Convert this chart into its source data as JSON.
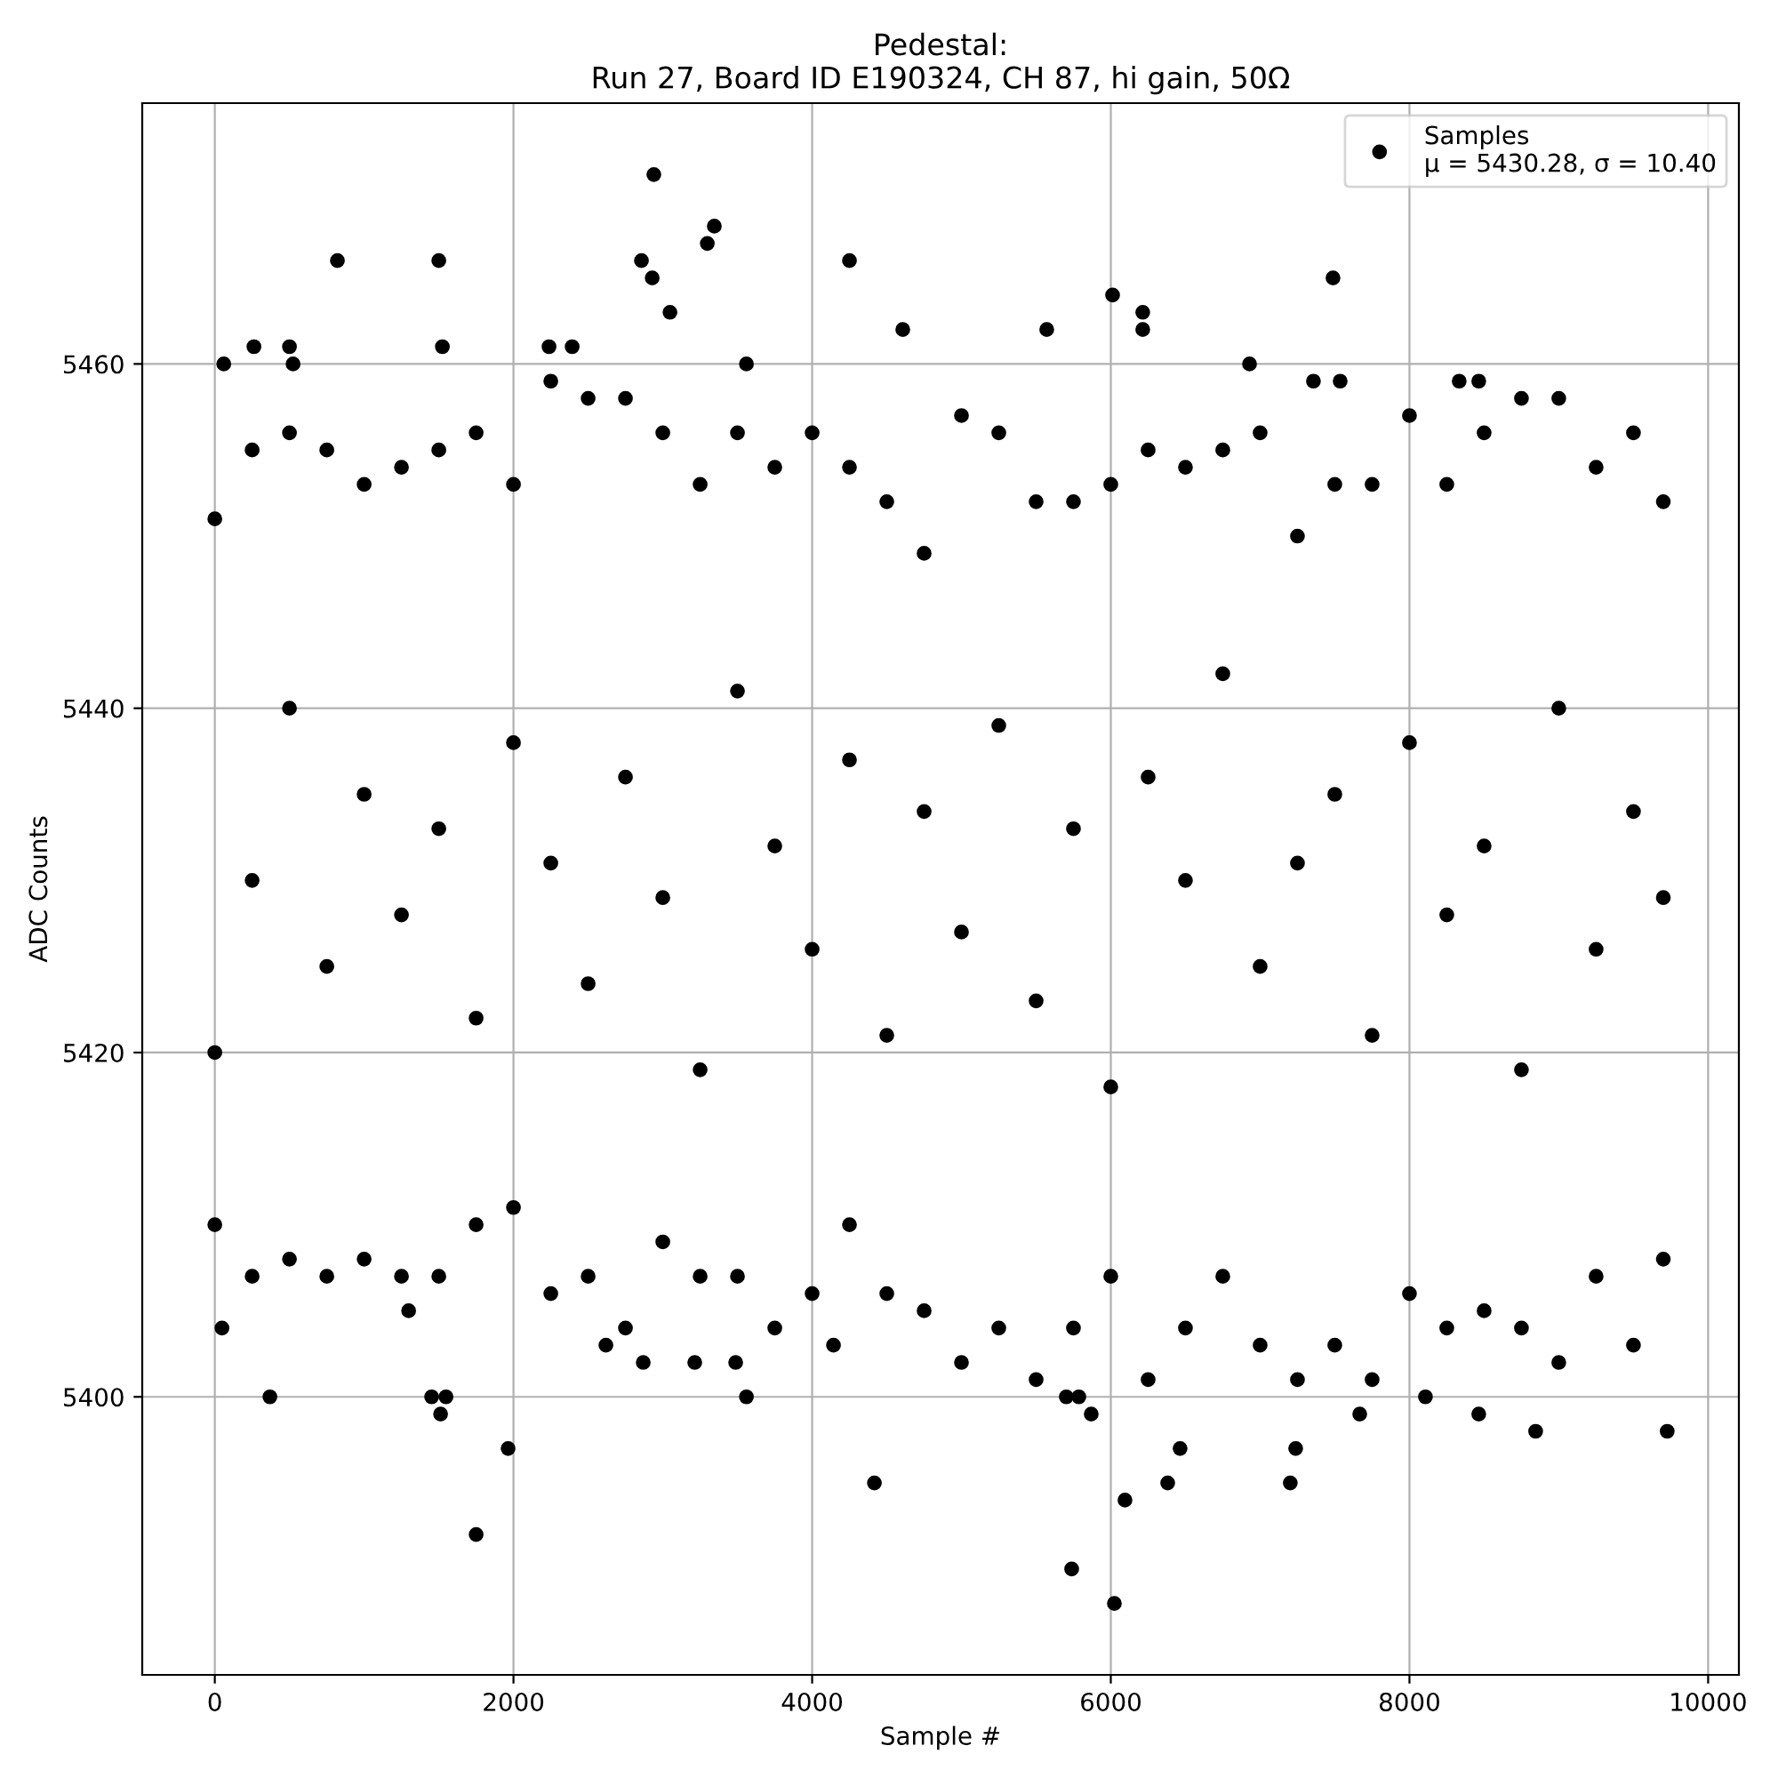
{
  "chart_data": {
    "type": "scatter",
    "title": "Pedestal:\nRun 27, Board ID E190324, CH 87, hi gain, 50Ω",
    "xlabel": "Sample #",
    "ylabel": "ADC Counts",
    "xlim": [
      -486,
      10206
    ],
    "ylim": [
      5383.85,
      5475.15
    ],
    "xticks": [
      0,
      2000,
      4000,
      6000,
      8000,
      10000
    ],
    "yticks": [
      5400,
      5420,
      5440,
      5460
    ],
    "grid": true,
    "legend": "top right",
    "marker": "circle",
    "series": [
      {
        "name": "Samples\nμ = 5430.28, σ = 10.40",
        "color": "#000000",
        "x": [
          0,
          250,
          500,
          750,
          1000,
          1250,
          1500,
          1750,
          2000,
          2250,
          2500,
          2750,
          3000,
          3250,
          3500,
          3750,
          4000,
          4250,
          4500,
          4750,
          5000,
          5250,
          5500,
          5750,
          6000,
          6250,
          6500,
          6750,
          7000,
          7250,
          7500,
          7750,
          8000,
          8250,
          8500,
          8750,
          9000,
          9250,
          9500,
          9700,
          0,
          250,
          500,
          750,
          1000,
          1250,
          1500,
          1750,
          2000,
          2250,
          2500,
          2750,
          3000,
          3250,
          3500,
          3750,
          4000,
          4250,
          4500,
          4750,
          5000,
          5250,
          5500,
          5750,
          6000,
          6250,
          6500,
          6750,
          7000,
          7250,
          7500,
          7750,
          8000,
          8250,
          8500,
          8750,
          9000,
          9250,
          9500,
          9700,
          0,
          250,
          500,
          750,
          1000,
          1250,
          1500,
          1750,
          2000,
          2250,
          2500,
          2750,
          3000,
          3250,
          3500,
          3750,
          4000,
          4250,
          4500,
          4750,
          5000,
          5250,
          5500,
          5750,
          6000,
          6250,
          6500,
          6750,
          7000,
          7250,
          7500,
          7750,
          8000,
          8250,
          8500,
          8750,
          9000,
          9250,
          9500,
          9700,
          2940,
          3345,
          3298,
          2857,
          2929,
          3048,
          821,
          1500,
          4250,
          4607,
          5571,
          6012,
          6214,
          6214,
          7488,
          6929,
          60,
          524,
          3560,
          262,
          500,
          1524,
          2238,
          2393,
          7357,
          7536,
          8333,
          8464,
          369,
          1452,
          1548,
          1512,
          1964,
          1750,
          3560,
          4417,
          48,
          1298,
          2619,
          2869,
          3214,
          3488,
          4143,
          5738,
          6024,
          6095,
          6381,
          6464,
          7202,
          7238,
          7667,
          8107,
          8464,
          8845,
          9726,
          5702,
          5786,
          5869
        ],
        "values": [
          5451,
          5455,
          5456,
          5455,
          5453,
          5454,
          5455,
          5456,
          5453,
          5459,
          5458,
          5458,
          5456,
          5453,
          5456,
          5454,
          5456,
          5454,
          5452,
          5449,
          5457,
          5456,
          5452,
          5452,
          5453,
          5455,
          5454,
          5455,
          5456,
          5450,
          5453,
          5453,
          5457,
          5453,
          5456,
          5458,
          5458,
          5454,
          5456,
          5452,
          5410,
          5407,
          5408,
          5407,
          5408,
          5407,
          5407,
          5410,
          5411,
          5406,
          5407,
          5404,
          5409,
          5407,
          5407,
          5404,
          5406,
          5410,
          5406,
          5405,
          5402,
          5404,
          5401,
          5404,
          5407,
          5401,
          5404,
          5407,
          5403,
          5401,
          5403,
          5401,
          5406,
          5404,
          5405,
          5404,
          5402,
          5407,
          5403,
          5408,
          5420,
          5430,
          5440,
          5425,
          5435,
          5428,
          5433,
          5422,
          5438,
          5431,
          5424,
          5436,
          5429,
          5419,
          5441,
          5432,
          5426,
          5437,
          5421,
          5434,
          5427,
          5439,
          5423,
          5433,
          5418,
          5436,
          5430,
          5442,
          5425,
          5431,
          5435,
          5421,
          5438,
          5428,
          5432,
          5419,
          5440,
          5426,
          5434,
          5429,
          5471,
          5468,
          5467,
          5466,
          5465,
          5463,
          5466,
          5466,
          5466,
          5462,
          5462,
          5464,
          5463,
          5462,
          5465,
          5460,
          5460,
          5460,
          5460,
          5461,
          5461,
          5461,
          5461,
          5461,
          5459,
          5459,
          5459,
          5459,
          5400,
          5400,
          5400,
          5399,
          5397,
          5392,
          5400,
          5395,
          5404,
          5405,
          5403,
          5402,
          5402,
          5402,
          5403,
          5390,
          5388,
          5394,
          5395,
          5397,
          5395,
          5397,
          5399,
          5400,
          5399,
          5398,
          5398,
          5400,
          5400,
          5399
        ]
      }
    ]
  }
}
